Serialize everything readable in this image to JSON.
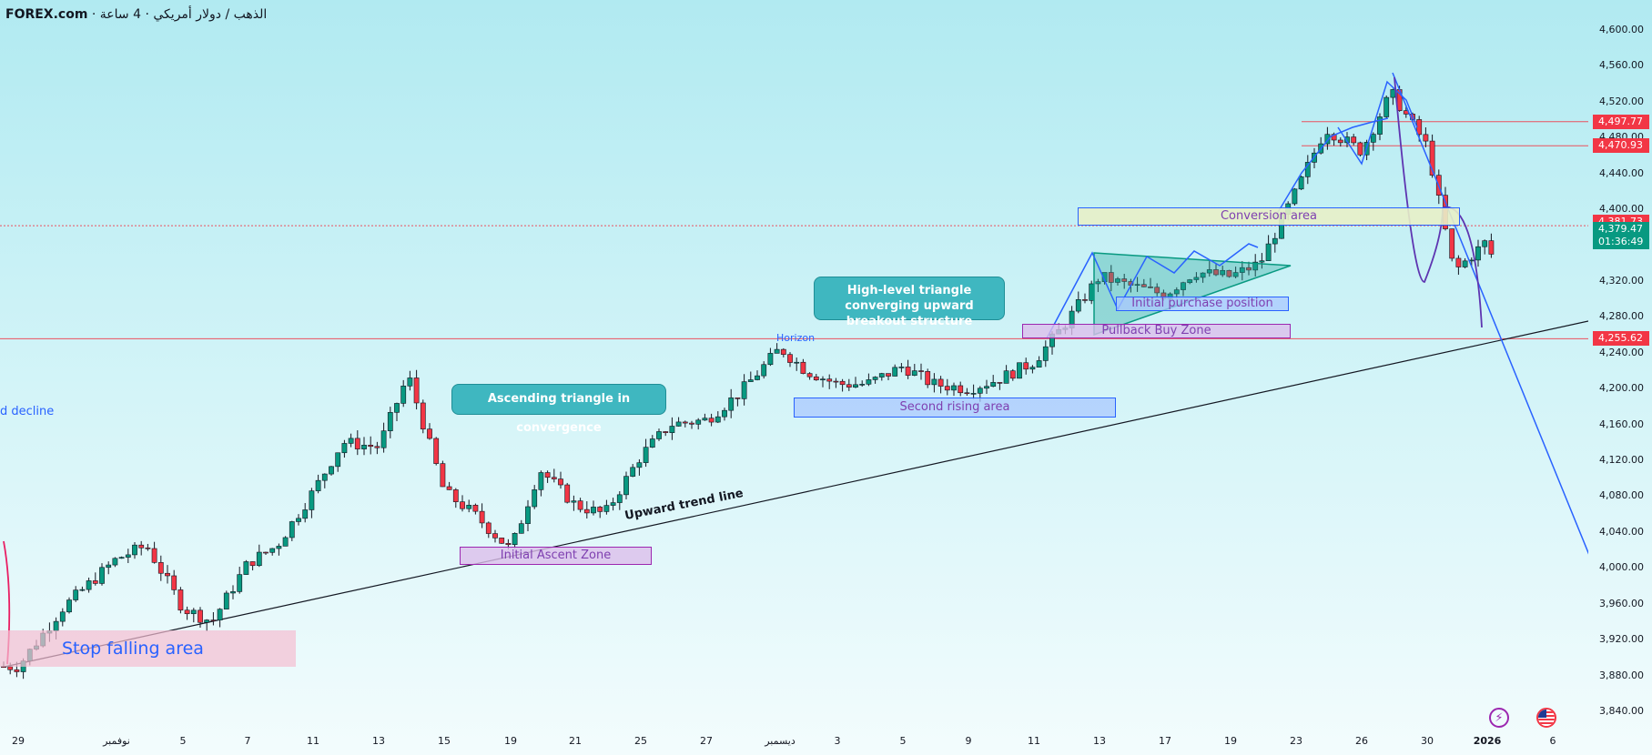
{
  "header": {
    "brand": "FOREX.com",
    "sep": " · ",
    "symbol": "الذهب / دولار أمريكي",
    "interval": "4 ساعة"
  },
  "y_axis": {
    "ticks": [
      {
        "value": 4600,
        "label": "4,600.00"
      },
      {
        "value": 4560,
        "label": "4,560.00"
      },
      {
        "value": 4520,
        "label": "4,520.00"
      },
      {
        "value": 4480,
        "label": "4,480.00"
      },
      {
        "value": 4440,
        "label": "4,440.00"
      },
      {
        "value": 4400,
        "label": "4,400.00"
      },
      {
        "value": 4320,
        "label": "4,320.00"
      },
      {
        "value": 4280,
        "label": "4,280.00"
      },
      {
        "value": 4240,
        "label": "4,240.00"
      },
      {
        "value": 4200,
        "label": "4,200.00"
      },
      {
        "value": 4160,
        "label": "4,160.00"
      },
      {
        "value": 4120,
        "label": "4,120.00"
      },
      {
        "value": 4080,
        "label": "4,080.00"
      },
      {
        "value": 4040,
        "label": "4,040.00"
      },
      {
        "value": 4000,
        "label": "4,000.00"
      },
      {
        "value": 3960,
        "label": "3,960.00"
      },
      {
        "value": 3920,
        "label": "3,920.00"
      },
      {
        "value": 3880,
        "label": "3,880.00"
      },
      {
        "value": 3840,
        "label": "3,840.00"
      }
    ]
  },
  "x_axis": {
    "ticks": [
      {
        "label": "29",
        "bold": false
      },
      {
        "label": "نوفمبر",
        "bold": false
      },
      {
        "label": "5",
        "bold": false
      },
      {
        "label": "7",
        "bold": false
      },
      {
        "label": "11",
        "bold": false
      },
      {
        "label": "13",
        "bold": false
      },
      {
        "label": "15",
        "bold": false
      },
      {
        "label": "19",
        "bold": false
      },
      {
        "label": "21",
        "bold": false
      },
      {
        "label": "25",
        "bold": false
      },
      {
        "label": "27",
        "bold": false
      },
      {
        "label": "ديسمبر",
        "bold": false
      },
      {
        "label": "3",
        "bold": false
      },
      {
        "label": "5",
        "bold": false
      },
      {
        "label": "9",
        "bold": false
      },
      {
        "label": "11",
        "bold": false
      },
      {
        "label": "13",
        "bold": false
      },
      {
        "label": "17",
        "bold": false
      },
      {
        "label": "19",
        "bold": false
      },
      {
        "label": "23",
        "bold": false
      },
      {
        "label": "26",
        "bold": false
      },
      {
        "label": "30",
        "bold": false
      },
      {
        "label": "2026",
        "bold": true
      },
      {
        "label": "6",
        "bold": false
      }
    ]
  },
  "price_tags": [
    {
      "value": 4497.77,
      "label": "4,497.77",
      "color": "#f23645"
    },
    {
      "value": 4470.93,
      "label": "4,470.93",
      "color": "#f23645"
    },
    {
      "value": 4381.73,
      "label": "4,381.73",
      "color": "#f23645"
    },
    {
      "value": 4379.47,
      "label": "4,379.47",
      "countdown": "01:36:49",
      "color": "#089981"
    },
    {
      "value": 4255.62,
      "label": "4,255.62",
      "color": "#f23645"
    }
  ],
  "annotations": {
    "ascending_triangle": "Ascending triangle in convergence",
    "high_level_triangle": "High-level triangle converging upward breakout structure",
    "upward_trend_line": "Upward trend line",
    "decline_fragment": "d decline",
    "horizon": "Horizon"
  },
  "zones": {
    "stop_falling": "Stop falling area",
    "initial_ascent": "Initial Ascent Zone",
    "second_rising": "Second rising area",
    "pullback_buy": "Pullback Buy Zone",
    "initial_purchase": "Initial purchase position",
    "conversion": "Conversion area"
  },
  "icons": {
    "lightning": "lightning-icon",
    "flag": "us-flag-icon"
  },
  "colors": {
    "up": "#089981",
    "down": "#f23645",
    "line_blue": "#2962ff",
    "trend_black": "#131722",
    "arc_purple": "#5e35b1"
  },
  "chart_data": {
    "type": "candlestick",
    "symbol": "الذهب / دولار أمريكي",
    "interval": "4 ساعة",
    "ylim": [
      3840,
      4600
    ],
    "y_ticks": [
      3840,
      3880,
      3920,
      3960,
      4000,
      4040,
      4080,
      4120,
      4160,
      4200,
      4240,
      4280,
      4320,
      4400,
      4440,
      4480,
      4520,
      4560,
      4600
    ],
    "x_tick_labels": [
      "29",
      "نوفمبر",
      "5",
      "7",
      "11",
      "13",
      "15",
      "19",
      "21",
      "25",
      "27",
      "ديسمبر",
      "3",
      "5",
      "9",
      "11",
      "13",
      "17",
      "19",
      "23",
      "26",
      "30",
      "2026",
      "6"
    ],
    "series": [
      {
        "name": "",
        "close_path": [
          {
            "x": "29",
            "y": 3890
          },
          {
            "x": "29",
            "y": 3955
          },
          {
            "x": "نوفمبر",
            "y": 4010
          },
          {
            "x": "نوفمبر",
            "y": 4025
          },
          {
            "x": "5",
            "y": 3955
          },
          {
            "x": "5",
            "y": 3940
          },
          {
            "x": "7",
            "y": 4005
          },
          {
            "x": "7",
            "y": 4025
          },
          {
            "x": "11",
            "y": 4085
          },
          {
            "x": "11",
            "y": 4140
          },
          {
            "x": "13",
            "y": 4135
          },
          {
            "x": "13",
            "y": 4215
          },
          {
            "x": "15",
            "y": 4085
          },
          {
            "x": "15",
            "y": 4060
          },
          {
            "x": "19",
            "y": 4020
          },
          {
            "x": "19",
            "y": 4110
          },
          {
            "x": "21",
            "y": 4070
          },
          {
            "x": "21",
            "y": 4060
          },
          {
            "x": "25",
            "y": 4125
          },
          {
            "x": "25",
            "y": 4160
          },
          {
            "x": "27",
            "y": 4165
          },
          {
            "x": "27",
            "y": 4195
          },
          {
            "x": "ديسمبر",
            "y": 4245
          },
          {
            "x": "ديسمبر",
            "y": 4220
          },
          {
            "x": "3",
            "y": 4205
          },
          {
            "x": "3",
            "y": 4205
          },
          {
            "x": "5",
            "y": 4225
          },
          {
            "x": "5",
            "y": 4205
          },
          {
            "x": "9",
            "y": 4200
          },
          {
            "x": "9",
            "y": 4210
          },
          {
            "x": "11",
            "y": 4230
          },
          {
            "x": "11",
            "y": 4270
          },
          {
            "x": "13",
            "y": 4325
          },
          {
            "x": "13",
            "y": 4315
          },
          {
            "x": "17",
            "y": 4305
          },
          {
            "x": "17",
            "y": 4330
          },
          {
            "x": "19",
            "y": 4325
          },
          {
            "x": "19",
            "y": 4340
          },
          {
            "x": "23",
            "y": 4420
          },
          {
            "x": "23",
            "y": 4490
          },
          {
            "x": "26",
            "y": 4465
          },
          {
            "x": "26",
            "y": 4530
          },
          {
            "x": "30",
            "y": 4470
          },
          {
            "x": "30",
            "y": 4330
          },
          {
            "x": "2026",
            "y": 4365
          },
          {
            "x": "2026",
            "y": 4310
          },
          {
            "x": "2026",
            "y": 4379.47
          }
        ]
      }
    ],
    "horizontal_levels": [
      4497.77,
      4470.93,
      4381.73,
      4255.62
    ],
    "last_price": 4379.47,
    "grid": false,
    "legend": "none"
  }
}
